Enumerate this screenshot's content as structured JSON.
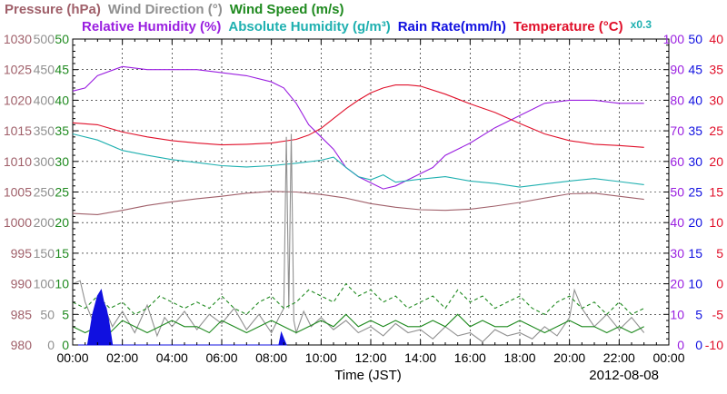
{
  "chart_data": {
    "type": "line",
    "title_segments": [
      {
        "text": "Pressure (hPa)",
        "color": "#a0606a"
      },
      {
        "text": "Wind Direction (°)",
        "color": "#909090"
      },
      {
        "text": "Wind Speed (m/s)",
        "color": "#1f8a1f"
      }
    ],
    "subtitle_segments": [
      {
        "text": "Relative Humidity (%)",
        "color": "#9a1fe0"
      },
      {
        "text": "Absolute Humidity (g/m³)",
        "color": "#1fb0b0"
      },
      {
        "text": "Rain Rate(mm/h)",
        "color": "#1010e0"
      },
      {
        "text": "Temperature (°C)",
        "color": "#e0102a"
      },
      {
        "text": "x0.3",
        "color": "#1fb0b0"
      }
    ],
    "xlabel": "Time (JST)",
    "date": "2012-08-08",
    "x_ticks": [
      "00:00",
      "02:00",
      "04:00",
      "06:00",
      "08:00",
      "10:00",
      "12:00",
      "14:00",
      "16:00",
      "18:00",
      "20:00",
      "22:00",
      "00:00"
    ],
    "x_range_hours": [
      0,
      24
    ],
    "axes": {
      "pressure": {
        "ticks": [
          "1030",
          "1025",
          "1020",
          "1015",
          "1010",
          "1005",
          "1000",
          "995",
          "990",
          "985",
          "980"
        ],
        "range": [
          980,
          1030
        ],
        "color": "#a0606a"
      },
      "wind_direction": {
        "ticks": [
          "500",
          "450",
          "400",
          "350",
          "300",
          "250",
          "200",
          "150",
          "100",
          "50",
          "0"
        ],
        "range": [
          0,
          500
        ],
        "color": "#909090"
      },
      "wind_speed": {
        "ticks": [
          "50",
          "45",
          "40",
          "35",
          "30",
          "25",
          "20",
          "15",
          "10",
          "5",
          "0"
        ],
        "range": [
          0,
          50
        ],
        "color": "#1f8a1f"
      },
      "relative_humidity": {
        "ticks": [
          "100",
          "90",
          "80",
          "70",
          "60",
          "50",
          "40",
          "30",
          "20",
          "10",
          "0"
        ],
        "range": [
          0,
          100
        ],
        "color": "#9a1fe0"
      },
      "rain_rate": {
        "ticks": [
          "50",
          "45",
          "40",
          "35",
          "30",
          "25",
          "20",
          "15",
          "10",
          "5",
          "0"
        ],
        "range": [
          0,
          50
        ],
        "color": "#1010e0"
      },
      "temperature": {
        "ticks": [
          "40",
          "35",
          "30",
          "25",
          "20",
          "15",
          "10",
          "5",
          "0",
          "-5",
          "-10"
        ],
        "range": [
          -10,
          40
        ],
        "color": "#e0102a"
      }
    },
    "grid": true,
    "series": [
      {
        "name": "Relative Humidity (%)",
        "color": "#9a1fe0",
        "x": [
          0,
          0.5,
          1,
          2,
          3,
          4,
          5,
          6,
          7,
          8,
          8.5,
          9,
          9.5,
          10,
          10.5,
          11,
          11.5,
          12,
          12.5,
          13,
          13.5,
          14,
          14.5,
          15,
          16,
          17,
          18,
          19,
          20,
          21,
          22,
          23
        ],
        "y": [
          83,
          84,
          88,
          91,
          90,
          90,
          90,
          89,
          88,
          86,
          84,
          79,
          72,
          68,
          64,
          58,
          55,
          53,
          51,
          52,
          54,
          56,
          58,
          62,
          66,
          71,
          75,
          79,
          80,
          80,
          79,
          79
        ]
      },
      {
        "name": "Temperature (°C)",
        "color": "#e0102a",
        "x": [
          0,
          1,
          2,
          3,
          4,
          5,
          6,
          7,
          8,
          9,
          9.5,
          10,
          10.5,
          11,
          11.5,
          12,
          12.5,
          13,
          13.5,
          14,
          15,
          16,
          17,
          18,
          19,
          20,
          21,
          22,
          23
        ],
        "y": [
          26.3,
          26,
          24.8,
          24,
          23.4,
          23,
          22.7,
          22.8,
          23,
          23.6,
          24.3,
          25.4,
          27,
          28.6,
          30,
          31.2,
          32,
          32.5,
          32.5,
          32.3,
          31,
          29.4,
          28,
          26.2,
          24.5,
          23.4,
          22.8,
          22.6,
          22.3
        ]
      },
      {
        "name": "Absolute Humidity (g/m³)",
        "color": "#1fb0b0",
        "x": [
          0,
          1,
          2,
          3,
          4,
          5,
          6,
          7,
          8,
          9,
          10,
          10.5,
          11,
          11.5,
          12,
          12.5,
          13,
          14,
          15,
          16,
          17,
          18,
          19,
          20,
          21,
          22,
          23
        ],
        "y": [
          345,
          335,
          318,
          310,
          303,
          298,
          293,
          291,
          293,
          297,
          302,
          307,
          290,
          275,
          270,
          278,
          266,
          271,
          275,
          268,
          264,
          258,
          263,
          268,
          272,
          267,
          262
        ]
      },
      {
        "name": "Pressure (hPa)",
        "color": "#a0606a",
        "x": [
          0,
          1,
          2,
          3,
          4,
          5,
          6,
          7,
          8,
          9,
          10,
          11,
          12,
          13,
          14,
          15,
          16,
          17,
          18,
          19,
          20,
          21,
          22,
          23
        ],
        "y": [
          1001.5,
          1001.3,
          1002,
          1002.8,
          1003.4,
          1003.9,
          1004.3,
          1004.8,
          1005.1,
          1005,
          1004.6,
          1004,
          1003.1,
          1002.5,
          1002.1,
          1002,
          1002.2,
          1002.7,
          1003.3,
          1004,
          1004.7,
          1004.8,
          1004.3,
          1003.8
        ]
      },
      {
        "name": "Wind Direction (°)",
        "color": "#909090",
        "x": [
          0,
          0.3,
          0.5,
          0.8,
          1,
          1.3,
          1.6,
          2,
          2.5,
          3,
          3.4,
          3.7,
          4,
          4.5,
          5,
          5.5,
          6,
          6.5,
          7,
          7.5,
          8,
          8.3,
          8.5,
          8.6,
          8.7,
          8.8,
          8.9,
          9,
          9.3,
          9.6,
          10,
          10.5,
          11,
          11.5,
          12,
          12.5,
          13,
          13.5,
          14,
          14.5,
          15,
          15.5,
          16,
          16.5,
          17,
          17.5,
          18,
          18.5,
          19,
          19.5,
          20,
          20.2,
          20.5,
          21,
          21.5,
          22,
          22.5,
          23
        ],
        "y": [
          100,
          105,
          70,
          40,
          20,
          60,
          30,
          55,
          20,
          65,
          15,
          45,
          30,
          55,
          25,
          50,
          35,
          60,
          25,
          50,
          20,
          45,
          60,
          340,
          60,
          345,
          40,
          20,
          55,
          30,
          45,
          25,
          40,
          20,
          30,
          15,
          35,
          20,
          25,
          10,
          30,
          15,
          20,
          5,
          25,
          15,
          20,
          10,
          30,
          15,
          45,
          90,
          60,
          30,
          50,
          25,
          45,
          20
        ]
      },
      {
        "name": "Wind Speed (m/s)",
        "color": "#1f8a1f",
        "x": [
          0,
          0.5,
          1,
          1.5,
          2,
          2.5,
          3,
          3.5,
          4,
          4.5,
          5,
          5.5,
          6,
          6.5,
          7,
          7.5,
          8,
          8.5,
          9,
          9.5,
          10,
          10.5,
          11,
          11.5,
          12,
          12.5,
          13,
          13.5,
          14,
          14.5,
          15,
          15.5,
          16,
          16.5,
          17,
          17.5,
          18,
          18.5,
          19,
          19.5,
          20,
          20.5,
          21,
          21.5,
          22,
          22.5,
          23
        ],
        "y": [
          3,
          2,
          3,
          2,
          4,
          3,
          2,
          3,
          4,
          3,
          3,
          2,
          4,
          3,
          2,
          3,
          4,
          3,
          2,
          3,
          4,
          3,
          5,
          3,
          4,
          3,
          4,
          3,
          3,
          4,
          3,
          5,
          3,
          4,
          3,
          3,
          4,
          3,
          2,
          3,
          4,
          3,
          3,
          2,
          3,
          2,
          3
        ]
      },
      {
        "name": "Wind Speed (m/s)",
        "color": "#1f8a1f",
        "x": [
          0,
          0.5,
          1,
          1.5,
          2,
          2.5,
          3,
          3.5,
          4,
          4.5,
          5,
          5.5,
          6,
          6.5,
          7,
          7.5,
          8,
          8.5,
          9,
          9.5,
          10,
          10.5,
          11,
          11.5,
          12,
          12.5,
          13,
          13.5,
          14,
          14.5,
          15,
          15.5,
          16,
          16.5,
          17,
          17.5,
          18,
          18.5,
          19,
          19.5,
          20,
          20.5,
          21,
          21.5,
          22,
          22.5,
          23
        ],
        "y": [
          7,
          6,
          8,
          6,
          7,
          5,
          6,
          8,
          7,
          6,
          7,
          6,
          8,
          6,
          5,
          7,
          8,
          6,
          7,
          9,
          8,
          7,
          10,
          8,
          9,
          7,
          8,
          6,
          7,
          8,
          6,
          9,
          7,
          8,
          6,
          7,
          8,
          6,
          5,
          7,
          8,
          6,
          7,
          5,
          7,
          5,
          6
        ]
      },
      {
        "name": "Rain Rate(mm/h)",
        "color": "#1010e0",
        "x": [
          0,
          0.6,
          0.8,
          1.0,
          1.15,
          1.25,
          1.35,
          1.45,
          1.6,
          8.3,
          8.4,
          8.5,
          8.6
        ],
        "y": [
          0,
          0,
          5,
          8,
          9,
          7,
          6,
          4,
          0,
          0,
          2,
          1,
          0
        ]
      }
    ]
  }
}
